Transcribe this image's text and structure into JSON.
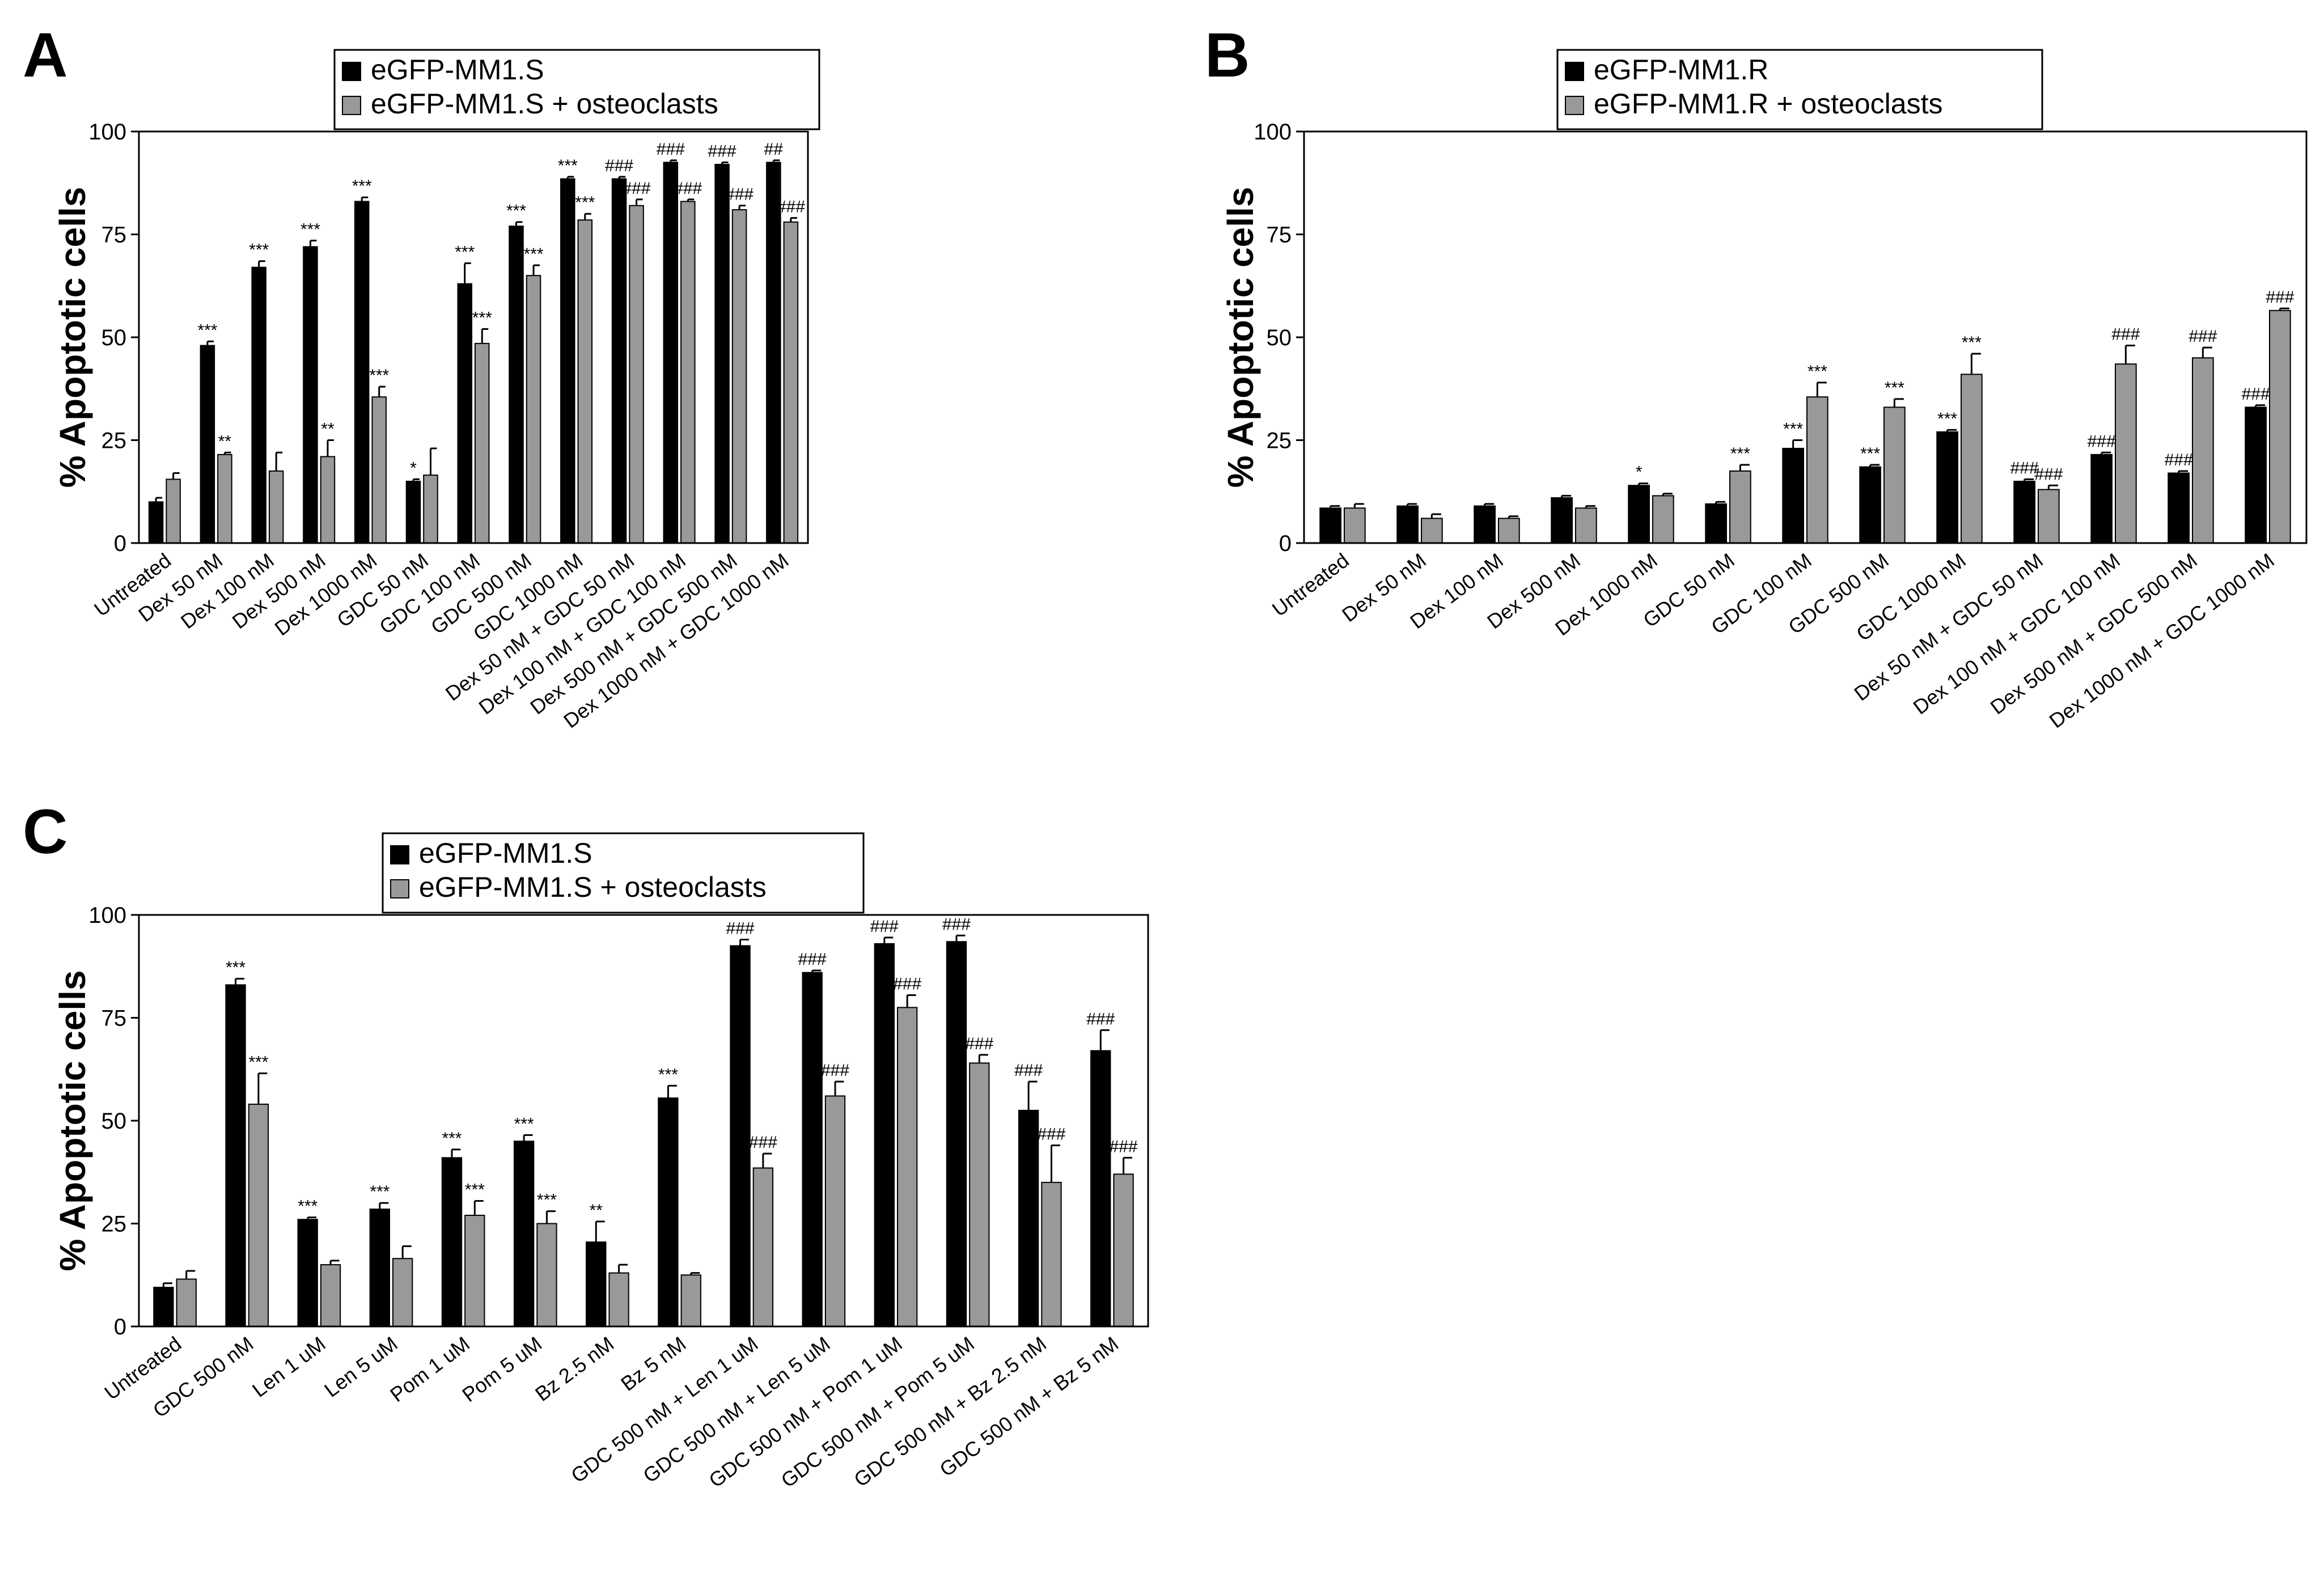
{
  "chart_data": [
    {
      "panel": "A",
      "type": "bar",
      "ylabel": "% Apoptotic cells",
      "ylim": [
        0,
        100
      ],
      "yticks": [
        "0",
        "25",
        "50",
        "75",
        "100"
      ],
      "legend_position": "top",
      "categories": [
        "Untreated",
        "Dex 50 nM",
        "Dex 100 nM",
        "Dex 500 nM",
        "Dex 1000 nM",
        "GDC 50 nM",
        "GDC 100 nM",
        "GDC 500 nM",
        "GDC 1000 nM",
        "Dex 50 nM + GDC 50 nM",
        "Dex 100 nM + GDC 100 nM",
        "Dex 500 nM + GDC 500 nM",
        "Dex 1000 nM + GDC 1000 nM"
      ],
      "series": [
        {
          "name": "eGFP-MM1.S",
          "color": "#000000",
          "values": [
            10,
            48,
            67,
            72,
            83,
            15,
            63,
            77,
            88.5,
            88.5,
            92.5,
            92,
            92.5
          ],
          "errors": [
            1,
            1,
            1.5,
            1.5,
            1,
            0.5,
            5,
            1,
            0.5,
            0.5,
            0.5,
            0.5,
            0.5
          ],
          "sig": [
            "",
            "***",
            "***",
            "***",
            "***",
            "*",
            "***",
            "***",
            "***",
            "###",
            "###",
            "###",
            "##"
          ]
        },
        {
          "name": "eGFP-MM1.S + osteoclasts",
          "color": "#999999",
          "values": [
            15.5,
            21.5,
            17.5,
            21,
            35.5,
            16.5,
            48.5,
            65,
            78.5,
            82,
            83,
            81,
            78
          ],
          "errors": [
            1.5,
            0.5,
            4.5,
            4,
            2.5,
            6.5,
            3.5,
            2.5,
            1.5,
            1.5,
            0.5,
            1,
            1
          ],
          "sig": [
            "",
            "**",
            "",
            "**",
            "***",
            "",
            "***",
            "***",
            "***",
            "###",
            "###",
            "###",
            "###"
          ]
        }
      ]
    },
    {
      "panel": "B",
      "type": "bar",
      "ylabel": "% Apoptotic cells",
      "ylim": [
        0,
        100
      ],
      "yticks": [
        "0",
        "25",
        "50",
        "75",
        "100"
      ],
      "legend_position": "top",
      "categories": [
        "Untreated",
        "Dex 50 nM",
        "Dex 100 nM",
        "Dex 500 nM",
        "Dex 1000 nM",
        "GDC 50 nM",
        "GDC 100 nM",
        "GDC 500 nM",
        "GDC 1000 nM",
        "Dex 50 nM + GDC 50 nM",
        "Dex 100 nM + GDC 100 nM",
        "Dex 500 nM + GDC 500 nM",
        "Dex 1000 nM + GDC 1000 nM"
      ],
      "series": [
        {
          "name": "eGFP-MM1.R",
          "color": "#000000",
          "values": [
            8.5,
            9,
            9,
            11,
            14,
            9.5,
            23,
            18.5,
            27,
            15,
            21.5,
            17,
            33
          ],
          "errors": [
            0.5,
            0.5,
            0.5,
            0.5,
            0.5,
            0.5,
            2,
            0.5,
            0.5,
            0.5,
            0.5,
            0.5,
            0.5
          ],
          "sig": [
            "",
            "",
            "",
            "",
            "*",
            "",
            "***",
            "***",
            "***",
            "###",
            "###",
            "###",
            "###"
          ]
        },
        {
          "name": "eGFP-MM1.R + osteoclasts",
          "color": "#999999",
          "values": [
            8.5,
            6,
            6,
            8.5,
            11.5,
            17.5,
            35.5,
            33,
            41,
            13,
            43.5,
            45,
            56.5
          ],
          "errors": [
            1,
            1,
            0.5,
            0.5,
            0.5,
            1.5,
            3.5,
            2,
            5,
            1,
            4.5,
            2.5,
            0.5
          ],
          "sig": [
            "",
            "",
            "",
            "",
            "",
            "***",
            "***",
            "***",
            "***",
            "###",
            "###",
            "###",
            "###"
          ]
        }
      ]
    },
    {
      "panel": "C",
      "type": "bar",
      "ylabel": "% Apoptotic cells",
      "ylim": [
        0,
        100
      ],
      "yticks": [
        "0",
        "25",
        "50",
        "75",
        "100"
      ],
      "legend_position": "top",
      "categories": [
        "Untreated",
        "GDC 500 nM",
        "Len 1 uM",
        "Len 5 uM",
        "Pom 1 uM",
        "Pom 5 uM",
        "Bz 2.5 nM",
        "Bz 5 nM",
        "GDC 500 nM + Len 1 uM",
        "GDC 500 nM + Len 5 uM",
        "GDC 500 nM + Pom 1 uM",
        "GDC 500 nM + Pom 5 uM",
        "GDC 500 nM + Bz 2.5 nM",
        "GDC 500 nM + Bz 5 nM"
      ],
      "series": [
        {
          "name": "eGFP-MM1.S",
          "color": "#000000",
          "values": [
            9.5,
            83,
            26,
            28.5,
            41,
            45,
            20.5,
            55.5,
            92.5,
            86,
            93,
            93.5,
            52.5,
            67
          ],
          "errors": [
            1,
            1.5,
            0.5,
            1.5,
            2,
            1.5,
            5,
            3,
            1.5,
            0.5,
            1.5,
            1.5,
            7,
            5
          ],
          "sig": [
            "",
            "***",
            "***",
            "***",
            "***",
            "***",
            "**",
            "***",
            "###",
            "###",
            "###",
            "###",
            "###",
            "###"
          ]
        },
        {
          "name": "eGFP-MM1.S + osteoclasts",
          "color": "#999999",
          "values": [
            11.5,
            54,
            15,
            16.5,
            27,
            25,
            13,
            12.5,
            38.5,
            56,
            77.5,
            64,
            35,
            37
          ],
          "errors": [
            2,
            7.5,
            1,
            3,
            3.5,
            3,
            2,
            0.5,
            3.5,
            3.5,
            3,
            2,
            9,
            4
          ],
          "sig": [
            "",
            "***",
            "",
            "",
            "***",
            "***",
            "",
            "",
            "###",
            "###",
            "###",
            "###",
            "###",
            "###"
          ]
        }
      ]
    }
  ]
}
